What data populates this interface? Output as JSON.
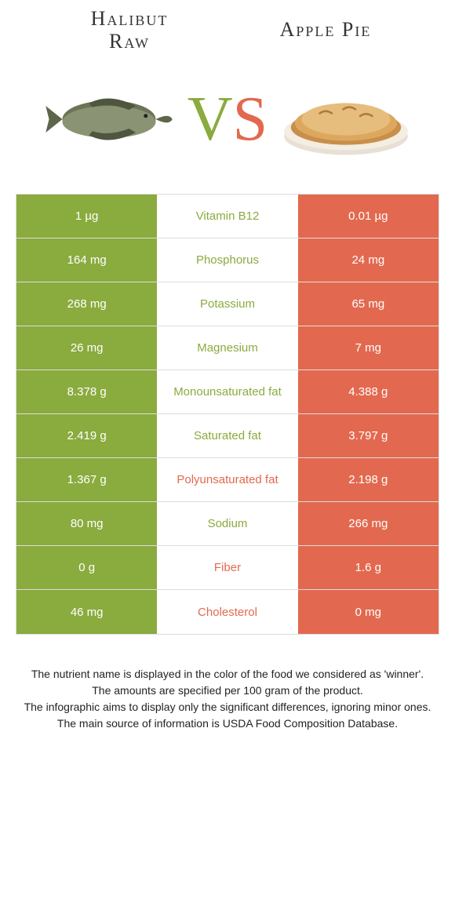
{
  "food_a": {
    "title_line1": "Halibut",
    "title_line2": "Raw"
  },
  "food_b": {
    "title": "Apple Pie"
  },
  "vs": {
    "v": "V",
    "s": "S"
  },
  "colors": {
    "green": "#8aab3e",
    "orange": "#e2694f"
  },
  "rows": [
    {
      "left": "1 µg",
      "name": "Vitamin B12",
      "right": "0.01 µg",
      "winner": "a"
    },
    {
      "left": "164 mg",
      "name": "Phosphorus",
      "right": "24 mg",
      "winner": "a"
    },
    {
      "left": "268 mg",
      "name": "Potassium",
      "right": "65 mg",
      "winner": "a"
    },
    {
      "left": "26 mg",
      "name": "Magnesium",
      "right": "7 mg",
      "winner": "a"
    },
    {
      "left": "8.378 g",
      "name": "Monounsaturated fat",
      "right": "4.388 g",
      "winner": "a"
    },
    {
      "left": "2.419 g",
      "name": "Saturated fat",
      "right": "3.797 g",
      "winner": "a"
    },
    {
      "left": "1.367 g",
      "name": "Polyunsaturated fat",
      "right": "2.198 g",
      "winner": "b"
    },
    {
      "left": "80 mg",
      "name": "Sodium",
      "right": "266 mg",
      "winner": "a"
    },
    {
      "left": "0 g",
      "name": "Fiber",
      "right": "1.6 g",
      "winner": "b"
    },
    {
      "left": "46 mg",
      "name": "Cholesterol",
      "right": "0 mg",
      "winner": "b"
    }
  ],
  "footer": {
    "l1": "The nutrient name is displayed in the color of the food we considered as 'winner'.",
    "l2": "The amounts are specified per 100 gram of the product.",
    "l3": "The infographic aims to display only the significant differences, ignoring minor ones.",
    "l4": "The main source of information is USDA Food Composition Database."
  }
}
